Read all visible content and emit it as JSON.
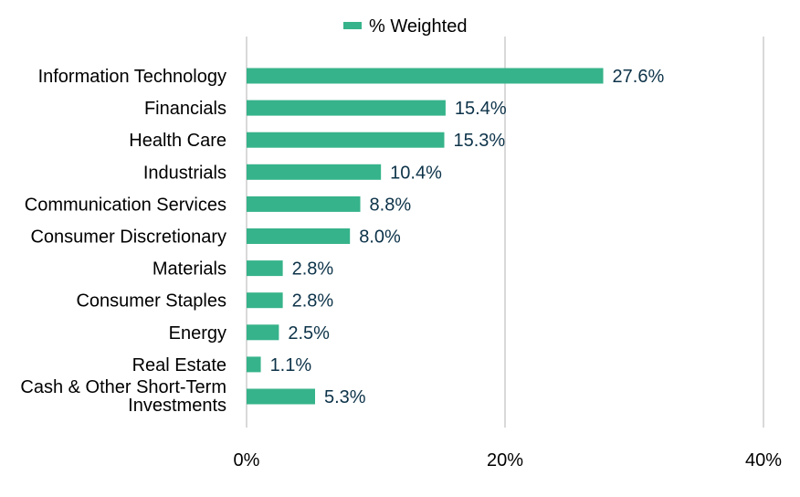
{
  "chart_data": {
    "type": "bar",
    "orientation": "horizontal",
    "categories": [
      "Information Technology",
      "Financials",
      "Health Care",
      "Industrials",
      "Communication Services",
      "Consumer Discretionary",
      "Materials",
      "Consumer Staples",
      "Energy",
      "Real Estate",
      "Cash & Other Short-Term Investments"
    ],
    "category_lines": [
      [
        "Information Technology"
      ],
      [
        "Financials"
      ],
      [
        "Health Care"
      ],
      [
        "Industrials"
      ],
      [
        "Communication Services"
      ],
      [
        "Consumer Discretionary"
      ],
      [
        "Materials"
      ],
      [
        "Consumer Staples"
      ],
      [
        "Energy"
      ],
      [
        "Real Estate"
      ],
      [
        "Cash & Other Short-Term",
        "Investments"
      ]
    ],
    "series": [
      {
        "name": "% Weighted",
        "color": "#36b38a",
        "values": [
          27.6,
          15.4,
          15.3,
          10.4,
          8.8,
          8.0,
          2.8,
          2.8,
          2.5,
          1.1,
          5.3
        ],
        "value_labels": [
          "27.6%",
          "15.4%",
          "15.3%",
          "10.4%",
          "8.8%",
          "8.0%",
          "2.8%",
          "2.8%",
          "2.5%",
          "1.1%",
          "5.3%"
        ]
      }
    ],
    "xlim": [
      0,
      40
    ],
    "xticks": [
      0,
      20,
      40
    ],
    "xtick_labels": [
      "0%",
      "20%",
      "40%"
    ],
    "grid": true,
    "grid_color": "#d9d9d9",
    "legend": {
      "position": "top-center",
      "label": "% Weighted"
    },
    "value_label_color": "#0d3349"
  }
}
